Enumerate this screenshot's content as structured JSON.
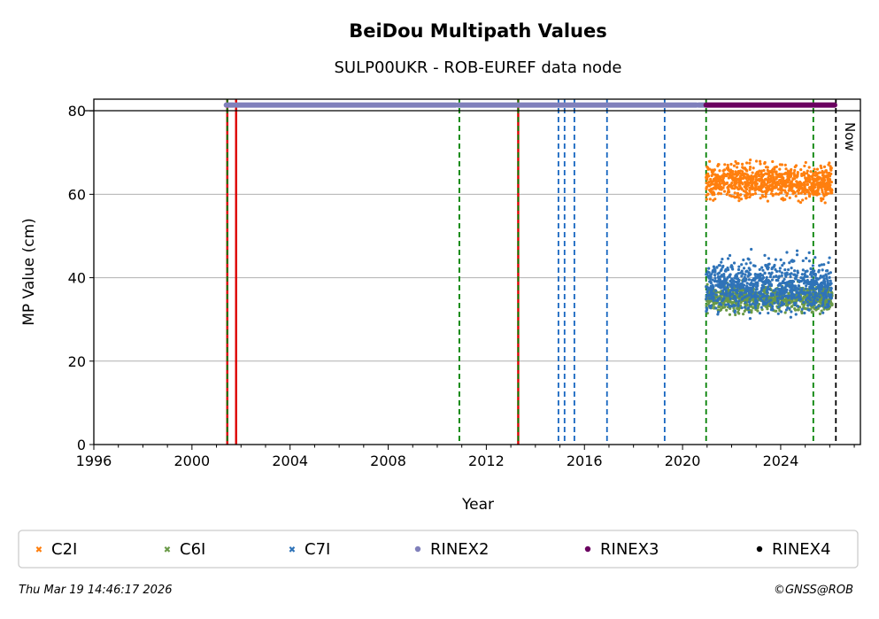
{
  "chart_data": {
    "type": "scatter",
    "title": "BeiDou Multipath Values",
    "subtitle": "SULP00UKR - ROB-EUREF data node",
    "xlabel": "Year",
    "ylabel": "MP Value (cm)",
    "xlim": [
      1996,
      2027.25
    ],
    "ylim": [
      0,
      82.8
    ],
    "xticks": [
      "1996",
      "2000",
      "2004",
      "2008",
      "2012",
      "2016",
      "2020",
      "2024"
    ],
    "yticks": [
      "0",
      "20",
      "40",
      "60",
      "80"
    ],
    "grid": "horizontal",
    "now_label": "Now",
    "series": [
      {
        "name": "C2I",
        "color": "#ff7f0e",
        "x_range": [
          2020.96,
          2026.1
        ],
        "mean": 63,
        "spread": 2
      },
      {
        "name": "C6I",
        "color": "#6a9a48",
        "x_range": [
          2020.96,
          2026.1
        ],
        "mean": 35,
        "spread": 1.5
      },
      {
        "name": "C7I",
        "color": "#2f73b8",
        "x_range": [
          2020.96,
          2026.1
        ],
        "mean": 38,
        "spread": 3
      }
    ],
    "rinex_bars": [
      {
        "name": "RINEX2",
        "color": "#8080bb",
        "segments": [
          [
            2001.4,
            2001.7
          ],
          [
            2001.8,
            2010.75
          ],
          [
            2010.85,
            2014.83
          ],
          [
            2014.9,
            2020.57
          ],
          [
            2020.65,
            2020.9
          ]
        ]
      },
      {
        "name": "RINEX3",
        "color": "#6a0060",
        "segments": [
          [
            2020.96,
            2026.2
          ]
        ]
      },
      {
        "name": "RINEX4",
        "color": "#000000",
        "segments": []
      }
    ],
    "events": [
      {
        "year": 2001.44,
        "color": "#dd0000",
        "style": "solid"
      },
      {
        "year": 2001.44,
        "color": "#008000",
        "style": "dashed"
      },
      {
        "year": 2001.8,
        "color": "#dd0000",
        "style": "solid"
      },
      {
        "year": 2010.9,
        "color": "#008000",
        "style": "dashed"
      },
      {
        "year": 2013.3,
        "color": "#dd0000",
        "style": "solid"
      },
      {
        "year": 2013.3,
        "color": "#008000",
        "style": "dashed"
      },
      {
        "year": 2014.94,
        "color": "#1565c0",
        "style": "dashed"
      },
      {
        "year": 2015.19,
        "color": "#1565c0",
        "style": "dashed"
      },
      {
        "year": 2015.59,
        "color": "#1565c0",
        "style": "dashed"
      },
      {
        "year": 2016.92,
        "color": "#1565c0",
        "style": "dashed"
      },
      {
        "year": 2019.27,
        "color": "#1565c0",
        "style": "dashed"
      },
      {
        "year": 2020.96,
        "color": "#008000",
        "style": "dashed"
      },
      {
        "year": 2025.33,
        "color": "#008000",
        "style": "dashed"
      },
      {
        "year": 2026.25,
        "color": "#000000",
        "style": "dashed"
      }
    ],
    "legend": [
      "C2I",
      "C6I",
      "C7I",
      "RINEX2",
      "RINEX3",
      "RINEX4"
    ],
    "legend_placement": "bottom"
  },
  "footer": {
    "timestamp": "Thu Mar 19 14:46:17 2026",
    "copyright": "©GNSS@ROB"
  }
}
